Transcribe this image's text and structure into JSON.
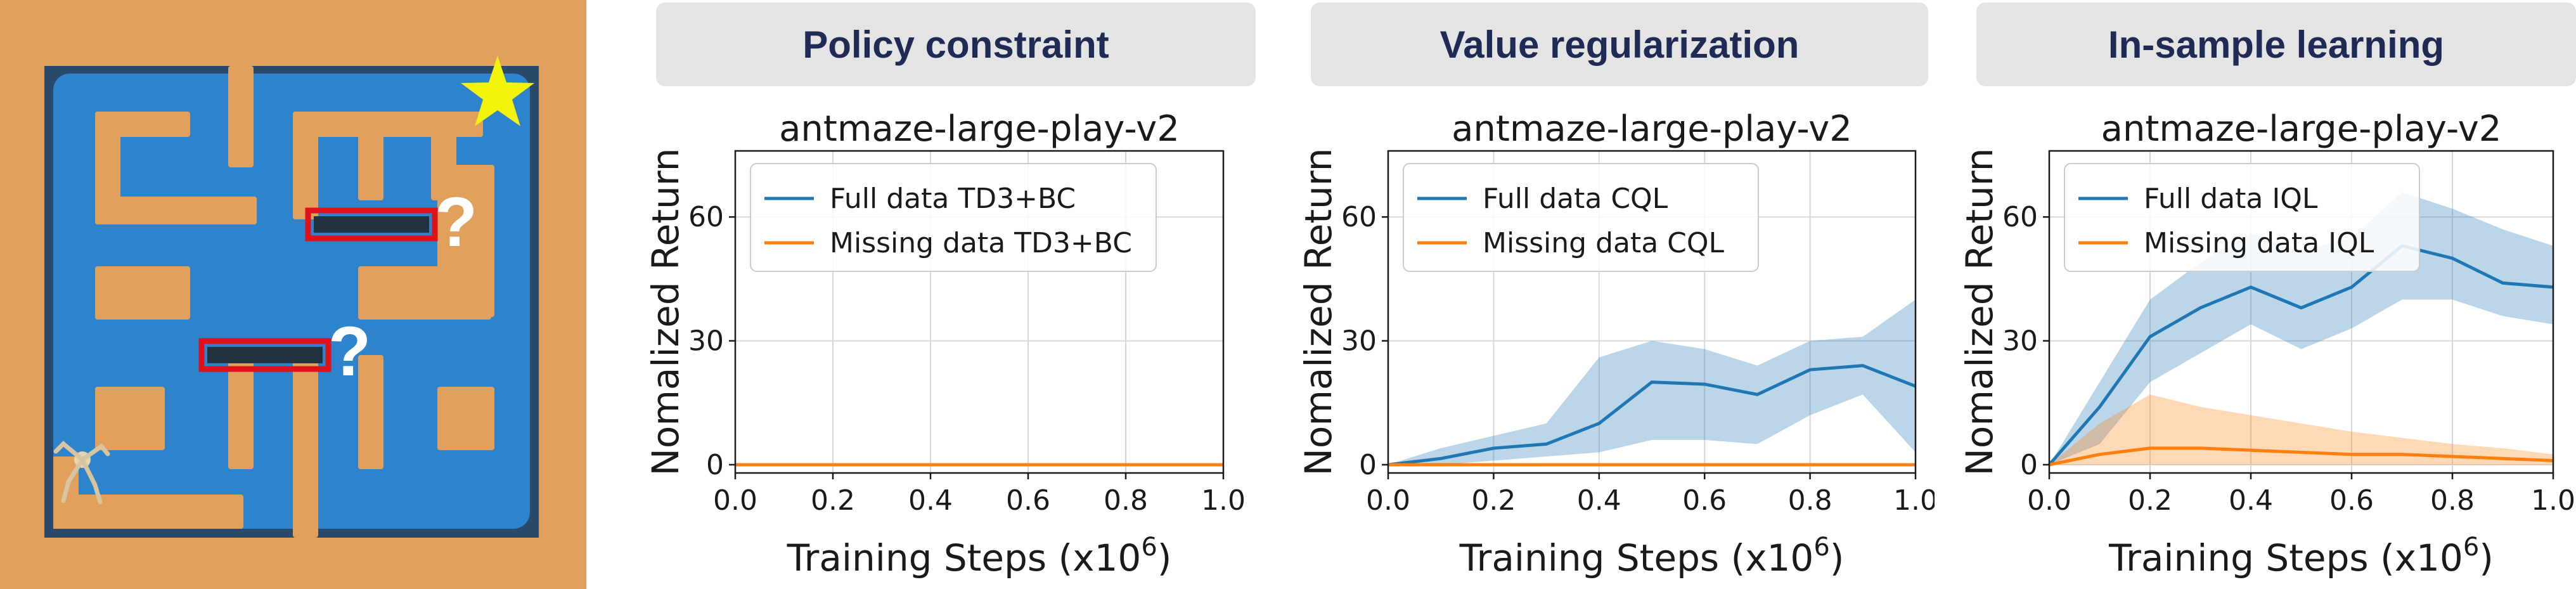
{
  "panel_headers": [
    "Policy constraint",
    "Value regularization",
    "In-sample learning"
  ],
  "maze": {
    "question_marks": [
      "?",
      "?"
    ],
    "colors": {
      "floor": "#e1a15c",
      "path": "#2d84cc",
      "barrier": "#e0111a",
      "star": "#f4f40a"
    }
  },
  "chart_data": [
    {
      "type": "line",
      "title": "antmaze-large-play-v2",
      "xlabel": "Training Steps (x10",
      "xlabel_sup": "6",
      "xlabel_end": ")",
      "ylabel": "Nomalized Return",
      "xlim": [
        0.0,
        1.0
      ],
      "ylim": [
        -2,
        76
      ],
      "xticks": [
        "0.0",
        "0.2",
        "0.4",
        "0.6",
        "0.8",
        "1.0"
      ],
      "yticks": [
        "0",
        "30",
        "60"
      ],
      "legend_position": "upper-left",
      "x": [
        0.0,
        0.1,
        0.2,
        0.3,
        0.4,
        0.5,
        0.6,
        0.7,
        0.8,
        0.9,
        1.0
      ],
      "series": [
        {
          "name": "Full data TD3+BC",
          "color": "#1f77b4",
          "values": [
            0,
            0,
            0,
            0,
            0,
            0,
            0,
            0,
            0,
            0,
            0
          ],
          "lower": [
            0,
            0,
            0,
            0,
            0,
            0,
            0,
            0,
            0,
            0,
            0
          ],
          "upper": [
            0,
            0,
            0,
            0,
            0,
            0,
            0,
            0,
            0,
            0,
            0
          ]
        },
        {
          "name": "Missing data TD3+BC",
          "color": "#ff7f0e",
          "values": [
            0,
            0,
            0,
            0,
            0,
            0,
            0,
            0,
            0,
            0,
            0
          ],
          "lower": [
            0,
            0,
            0,
            0,
            0,
            0,
            0,
            0,
            0,
            0,
            0
          ],
          "upper": [
            0,
            0,
            0,
            0,
            0,
            0,
            0,
            0,
            0,
            0,
            0
          ]
        }
      ]
    },
    {
      "type": "line",
      "title": "antmaze-large-play-v2",
      "xlabel": "Training Steps (x10",
      "xlabel_sup": "6",
      "xlabel_end": ")",
      "ylabel": "Nomalized Return",
      "xlim": [
        0.0,
        1.0
      ],
      "ylim": [
        -2,
        76
      ],
      "xticks": [
        "0.0",
        "0.2",
        "0.4",
        "0.6",
        "0.8",
        "1.0"
      ],
      "yticks": [
        "0",
        "30",
        "60"
      ],
      "legend_position": "upper-left",
      "x": [
        0.0,
        0.1,
        0.2,
        0.3,
        0.4,
        0.5,
        0.6,
        0.7,
        0.8,
        0.9,
        1.0
      ],
      "series": [
        {
          "name": "Full data CQL",
          "color": "#1f77b4",
          "values": [
            0,
            1.5,
            4,
            5,
            10,
            20,
            19.5,
            17,
            23,
            24,
            19
          ],
          "lower": [
            0,
            0,
            1,
            2,
            3,
            6,
            6,
            5,
            12,
            17,
            3
          ],
          "upper": [
            0,
            4,
            7,
            10,
            26,
            30,
            28,
            24,
            30,
            31,
            40
          ]
        },
        {
          "name": "Missing data CQL",
          "color": "#ff7f0e",
          "values": [
            0,
            0,
            0,
            0,
            0,
            0,
            0,
            0,
            0,
            0,
            0
          ],
          "lower": [
            0,
            0,
            0,
            0,
            0,
            0,
            0,
            0,
            0,
            0,
            0
          ],
          "upper": [
            0,
            0,
            0,
            0,
            0,
            0,
            0,
            0,
            0,
            0,
            0
          ]
        }
      ]
    },
    {
      "type": "line",
      "title": "antmaze-large-play-v2",
      "xlabel": "Training Steps (x10",
      "xlabel_sup": "6",
      "xlabel_end": ")",
      "ylabel": "Nomalized Return",
      "xlim": [
        0.0,
        1.0
      ],
      "ylim": [
        -2,
        76
      ],
      "xticks": [
        "0.0",
        "0.2",
        "0.4",
        "0.6",
        "0.8",
        "1.0"
      ],
      "yticks": [
        "0",
        "30",
        "60"
      ],
      "legend_position": "upper-left",
      "x": [
        0.0,
        0.1,
        0.2,
        0.3,
        0.4,
        0.5,
        0.6,
        0.7,
        0.8,
        0.9,
        1.0
      ],
      "series": [
        {
          "name": "Full data IQL",
          "color": "#1f77b4",
          "values": [
            0,
            14,
            31,
            38,
            43,
            38,
            43,
            53,
            50,
            44,
            43
          ],
          "lower": [
            0,
            5,
            20,
            27,
            34,
            28,
            33,
            40,
            40,
            36,
            34
          ],
          "upper": [
            0,
            20,
            40,
            49,
            56,
            52,
            55,
            66,
            62,
            57,
            53
          ]
        },
        {
          "name": "Missing data IQL",
          "color": "#ff7f0e",
          "values": [
            0,
            2.5,
            4,
            4,
            3.5,
            3,
            2.5,
            2.5,
            2,
            1.5,
            1
          ],
          "lower": [
            0,
            0,
            0,
            0,
            0,
            0,
            0,
            0,
            0,
            0,
            0
          ],
          "upper": [
            0,
            10,
            17,
            14,
            12,
            10,
            8,
            6.5,
            5,
            4,
            2.5
          ]
        }
      ]
    }
  ]
}
